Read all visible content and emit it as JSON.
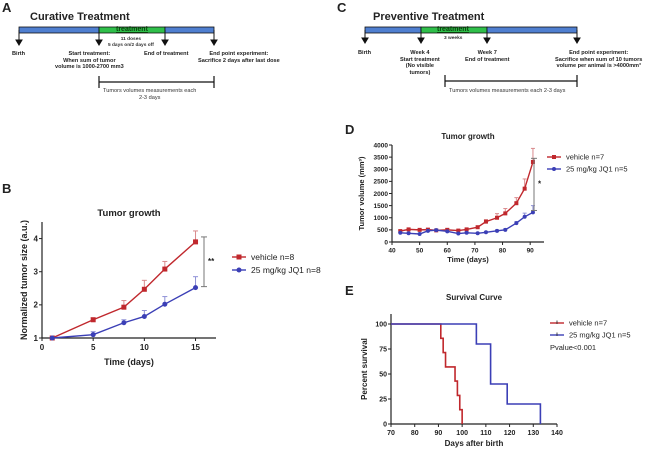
{
  "panels": {
    "A": {
      "letter": "A",
      "title": "Curative Treatment",
      "treatment_label": "treatment",
      "doses": [
        "11 doses",
        "5 days on/2 days off"
      ],
      "events": [
        {
          "lines": [
            "Birth"
          ]
        },
        {
          "lines": [
            "Start treatment:",
            "When sum of tumor",
            "volume is 1000-2700  mm3"
          ]
        },
        {
          "lines": [
            "End of treatment"
          ]
        },
        {
          "lines": [
            "End point experiment:",
            "Sacrifice 2 days after last dose"
          ]
        }
      ],
      "measurement": [
        "Tumors volumes measurements each",
        "2-3 days"
      ]
    },
    "C": {
      "letter": "C",
      "title": "Preventive Treatment",
      "treatment_label": "treatment",
      "duration": "3 weeks",
      "events": [
        {
          "lines": [
            "Birth"
          ]
        },
        {
          "lines": [
            "Week 4",
            "Start treatment",
            "(No visible",
            "tumors)"
          ]
        },
        {
          "lines": [
            "Week 7",
            "End of treatment"
          ]
        },
        {
          "lines": [
            "End point experiment:",
            "Sacrifice when sum of 10 tumors",
            "volume  per animal is >4000mm³"
          ]
        }
      ],
      "measurement": [
        "Tumors volumes measurements each 2-3 days"
      ]
    }
  },
  "colors": {
    "vehicle": "#c0282d",
    "jq1": "#3b3fb6",
    "timeline_blue": "#4f7fd0",
    "timeline_green": "#2fbf4a",
    "axis": "#222222"
  },
  "chart_data": [
    {
      "id": "B",
      "letter": "B",
      "type": "line",
      "title": "Tumor growth",
      "xlabel": "Time (days)",
      "ylabel": "Normalized tumor size (a.u.)",
      "xlim": [
        0,
        17
      ],
      "ylim": [
        1,
        4.5
      ],
      "xticks": [
        0,
        5,
        10,
        15
      ],
      "yticks": [
        1,
        2,
        3,
        4
      ],
      "series": [
        {
          "name": "vehicle n=8",
          "key": "vehicle",
          "marker": "square",
          "x": [
            1,
            5,
            8,
            10,
            12,
            15
          ],
          "y": [
            1.0,
            1.55,
            1.93,
            2.47,
            3.08,
            3.9
          ],
          "err": [
            0.0,
            0.06,
            0.2,
            0.27,
            0.23,
            0.33
          ]
        },
        {
          "name": "25 mg/kg JQ1 n=8",
          "key": "jq1",
          "marker": "circle",
          "x": [
            1,
            5,
            8,
            10,
            12,
            15
          ],
          "y": [
            1.0,
            1.1,
            1.46,
            1.65,
            2.02,
            2.52
          ],
          "err": [
            0.0,
            0.09,
            0.09,
            0.18,
            0.23,
            0.33
          ]
        }
      ],
      "significance": {
        "label": "**",
        "range": [
          2.55,
          4.05
        ]
      },
      "legend": "right"
    },
    {
      "id": "D",
      "letter": "D",
      "type": "line",
      "title": "Tumor growth",
      "xlabel": "Time (days)",
      "ylabel": "Tumor volume (mm³)",
      "xlim": [
        40,
        95
      ],
      "ylim": [
        0,
        4000
      ],
      "xticks": [
        40,
        50,
        60,
        70,
        80,
        90
      ],
      "yticks": [
        0,
        500,
        1000,
        1500,
        2000,
        2500,
        3000,
        3500,
        4000
      ],
      "series": [
        {
          "name": "vehicle n=7",
          "key": "vehicle",
          "marker": "square",
          "x": [
            43,
            46,
            50,
            53,
            56,
            60,
            64,
            67,
            71,
            74,
            78,
            81,
            85,
            88,
            91
          ],
          "y": [
            450,
            520,
            500,
            510,
            480,
            500,
            470,
            520,
            610,
            840,
            1000,
            1180,
            1600,
            2200,
            3300
          ],
          "err": [
            40,
            40,
            40,
            40,
            30,
            60,
            50,
            40,
            50,
            80,
            170,
            200,
            230,
            400,
            560
          ]
        },
        {
          "name": "25 mg/kg JQ1 n=5",
          "key": "jq1",
          "marker": "circle",
          "x": [
            43,
            46,
            50,
            53,
            56,
            60,
            64,
            67,
            71,
            74,
            78,
            81,
            85,
            88,
            91
          ],
          "y": [
            380,
            360,
            330,
            460,
            490,
            440,
            350,
            380,
            360,
            400,
            460,
            500,
            780,
            1040,
            1220
          ],
          "err": [
            30,
            30,
            30,
            40,
            40,
            40,
            30,
            30,
            30,
            30,
            40,
            50,
            60,
            150,
            280
          ]
        }
      ],
      "significance": {
        "label": "*",
        "range": [
          1300,
          3450
        ]
      },
      "legend": "top-right"
    },
    {
      "id": "E",
      "letter": "E",
      "type": "line",
      "title": "Survival Curve",
      "xlabel": "Days after birth",
      "ylabel": "Percent survival",
      "xlim": [
        70,
        140
      ],
      "ylim": [
        0,
        110
      ],
      "xticks": [
        70,
        80,
        90,
        100,
        110,
        120,
        130,
        140
      ],
      "yticks": [
        0,
        25,
        50,
        75,
        100
      ],
      "series": [
        {
          "name": "vehicle n=7",
          "key": "vehicle",
          "steps": [
            [
              70,
              100
            ],
            [
              91,
              100
            ],
            [
              91,
              85.7
            ],
            [
              92,
              85.7
            ],
            [
              92,
              71.4
            ],
            [
              93,
              71.4
            ],
            [
              93,
              57.1
            ],
            [
              97,
              57.1
            ],
            [
              97,
              42.9
            ],
            [
              98,
              42.9
            ],
            [
              98,
              28.6
            ],
            [
              99,
              28.6
            ],
            [
              99,
              14.3
            ],
            [
              100,
              14.3
            ],
            [
              100,
              0
            ]
          ]
        },
        {
          "name": "25 mg/kg JQ1 n=5",
          "key": "jq1",
          "steps": [
            [
              70,
              100
            ],
            [
              106,
              100
            ],
            [
              106,
              80
            ],
            [
              112,
              80
            ],
            [
              112,
              40
            ],
            [
              119,
              40
            ],
            [
              119,
              20
            ],
            [
              133,
              20
            ],
            [
              133,
              0
            ]
          ]
        }
      ],
      "annotation": "Pvalue<0.001",
      "legend": "right"
    }
  ]
}
